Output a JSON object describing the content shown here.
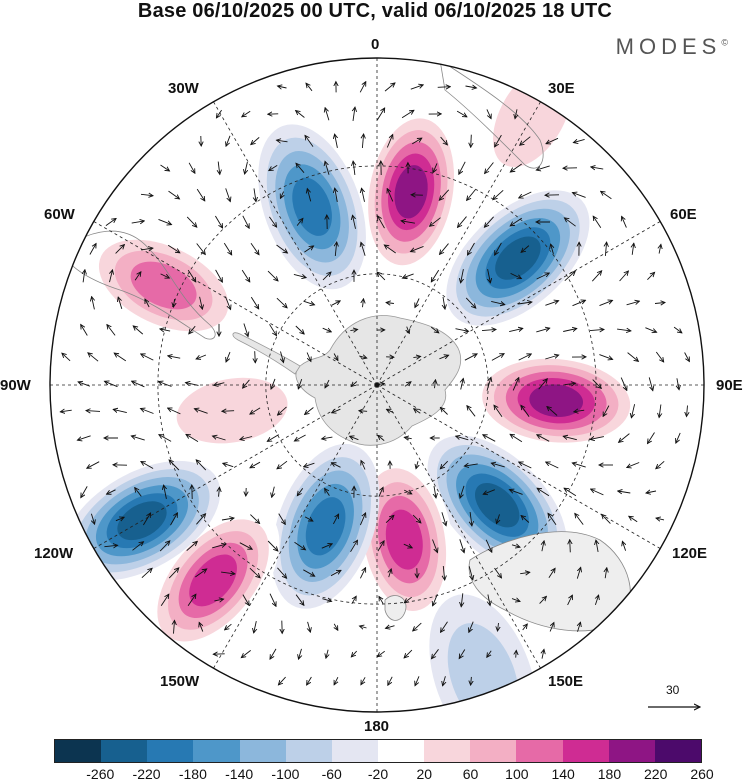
{
  "title": "Base 06/10/2025 00 UTC, valid 06/10/2025 18 UTC",
  "brand": "MODES",
  "brand_mark": "©",
  "longitude_labels": [
    "0",
    "30E",
    "60E",
    "90E",
    "120E",
    "150E",
    "180",
    "150W",
    "120W",
    "90W",
    "60W",
    "30W"
  ],
  "reference_vector": {
    "label": "30",
    "value": 30
  },
  "colorbar": {
    "ticks": [
      "-260",
      "-220",
      "-180",
      "-140",
      "-100",
      "-60",
      "-20",
      "20",
      "60",
      "100",
      "140",
      "180",
      "220",
      "260"
    ],
    "colors": [
      "#0c3450",
      "#17608f",
      "#2779b3",
      "#4e97c9",
      "#8cb7dc",
      "#bdd0e8",
      "#e4e6f2",
      "#ffffff",
      "#f8d6dc",
      "#f3afc4",
      "#e66aa7",
      "#cf2c93",
      "#8e1584",
      "#4c0a6b"
    ]
  },
  "anomaly_centers": [
    {
      "lon": 10,
      "lat_ring": 0.6,
      "value": 240
    },
    {
      "lon": 48,
      "lat_ring": 0.58,
      "value": -230
    },
    {
      "lon": 95,
      "lat_ring": 0.55,
      "value": 230
    },
    {
      "lon": 135,
      "lat_ring": 0.52,
      "value": -220
    },
    {
      "lon": 170,
      "lat_ring": 0.48,
      "value": 200
    },
    {
      "lon": -160,
      "lat_ring": 0.46,
      "value": -200
    },
    {
      "lon": -140,
      "lat_ring": 0.78,
      "value": 210
    },
    {
      "lon": -120,
      "lat_ring": 0.83,
      "value": -220
    },
    {
      "lon": -65,
      "lat_ring": 0.72,
      "value": 150
    },
    {
      "lon": -20,
      "lat_ring": 0.58,
      "value": -180
    },
    {
      "lon": -100,
      "lat_ring": 0.45,
      "value": 70
    },
    {
      "lon": 160,
      "lat_ring": 0.95,
      "value": -80
    },
    {
      "lon": 30,
      "lat_ring": 0.95,
      "value": 60
    }
  ]
}
